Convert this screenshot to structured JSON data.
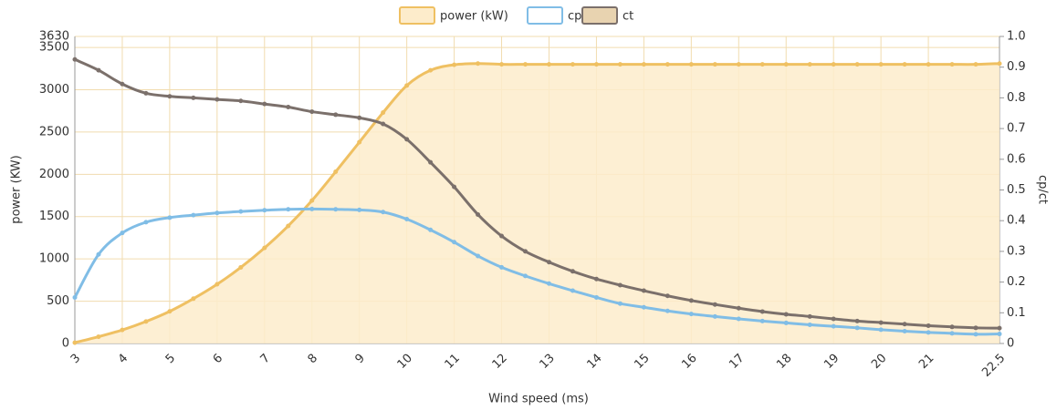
{
  "chart_data": {
    "type": "line",
    "x_label": "Wind speed (ms)",
    "y_label": "power (KW)",
    "y2_label": "cp/ct",
    "x": [
      3,
      3.5,
      4,
      4.5,
      5,
      5.5,
      6,
      6.5,
      7,
      7.5,
      8,
      8.5,
      9,
      9.5,
      10,
      10.5,
      11,
      11.5,
      12,
      12.5,
      13,
      13.5,
      14,
      14.5,
      15,
      15.5,
      16,
      16.5,
      17,
      17.5,
      18,
      18.5,
      19,
      19.5,
      20,
      20.5,
      21,
      21.5,
      22,
      22.5
    ],
    "series": [
      {
        "name": "power (kW)",
        "color": "#efc062",
        "fill": "#fdeccb",
        "area": true,
        "values": [
          10,
          80,
          160,
          260,
          380,
          530,
          700,
          900,
          1130,
          1390,
          1690,
          2030,
          2380,
          2730,
          3050,
          3230,
          3295,
          3310,
          3300,
          3300,
          3300,
          3300,
          3300,
          3300,
          3300,
          3300,
          3300,
          3300,
          3300,
          3300,
          3300,
          3300,
          3300,
          3300,
          3300,
          3300,
          3300,
          3300,
          3300,
          3310
        ]
      },
      {
        "name": "cp",
        "color": "#80bde6",
        "fill": "#ffffff",
        "axis": "y2",
        "values": [
          0.15,
          0.29,
          0.36,
          0.395,
          0.41,
          0.418,
          0.425,
          0.43,
          0.434,
          0.437,
          0.438,
          0.437,
          0.435,
          0.428,
          0.405,
          0.37,
          0.33,
          0.285,
          0.248,
          0.22,
          0.195,
          0.172,
          0.15,
          0.13,
          0.118,
          0.106,
          0.096,
          0.088,
          0.08,
          0.073,
          0.067,
          0.061,
          0.056,
          0.051,
          0.045,
          0.04,
          0.036,
          0.033,
          0.03,
          0.031
        ]
      },
      {
        "name": "ct",
        "color": "#7b706b",
        "fill": "#e8d3b0",
        "axis": "y2",
        "values": [
          0.925,
          0.89,
          0.845,
          0.815,
          0.805,
          0.8,
          0.795,
          0.79,
          0.78,
          0.77,
          0.755,
          0.745,
          0.735,
          0.715,
          0.665,
          0.59,
          0.51,
          0.42,
          0.35,
          0.3,
          0.265,
          0.235,
          0.21,
          0.19,
          0.172,
          0.155,
          0.14,
          0.127,
          0.115,
          0.104,
          0.095,
          0.088,
          0.08,
          0.073,
          0.068,
          0.063,
          0.058,
          0.054,
          0.051,
          0.05
        ]
      }
    ],
    "xlim": [
      3,
      22.5
    ],
    "xticks": [
      3,
      4,
      5,
      6,
      7,
      8,
      9,
      10,
      11,
      12,
      13,
      14,
      15,
      16,
      17,
      18,
      19,
      20,
      21,
      22.5
    ],
    "ylim": [
      0,
      3630
    ],
    "yticks": [
      0,
      500,
      1000,
      1500,
      2000,
      2500,
      3000,
      3500,
      3630
    ],
    "y2lim": [
      0,
      1
    ],
    "y2ticks": [
      0,
      0.1,
      0.2,
      0.3,
      0.4,
      0.5,
      0.6,
      0.7,
      0.8,
      0.9,
      {
        "value": 1,
        "label": "1.0"
      }
    ],
    "grid": true,
    "legend": "top"
  }
}
